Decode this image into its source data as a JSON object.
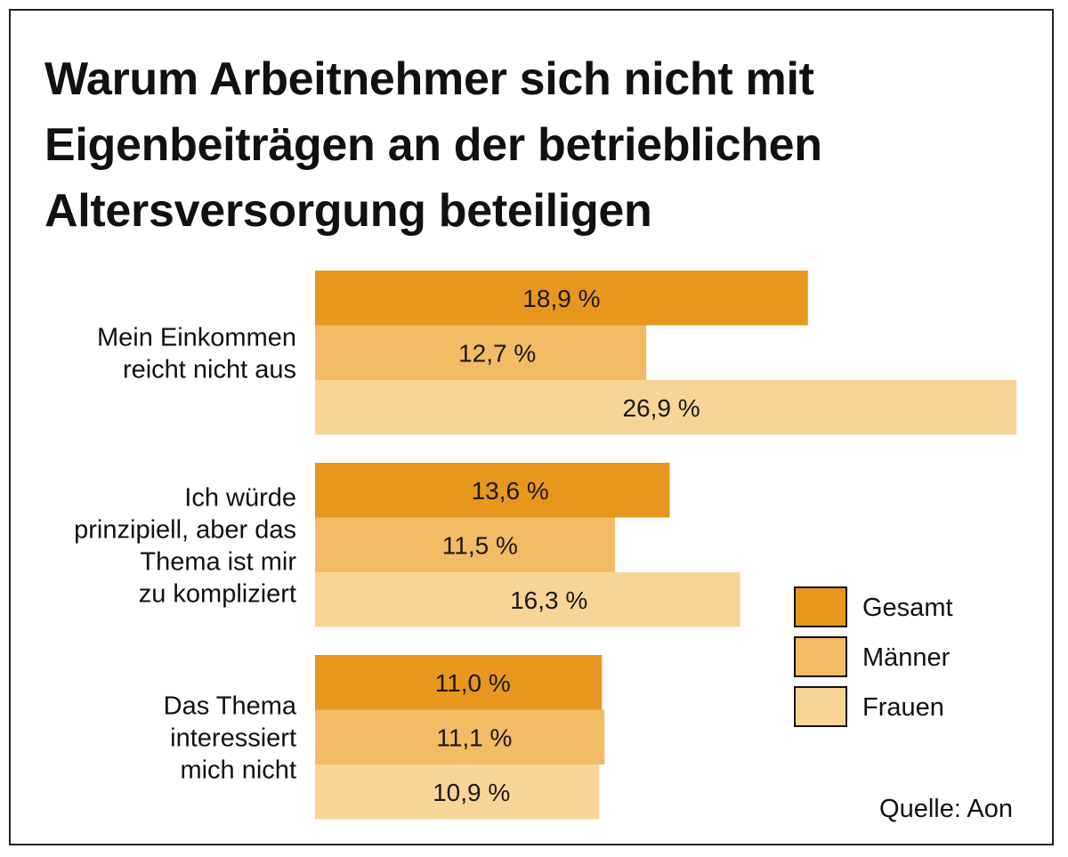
{
  "chart_data": {
    "type": "bar",
    "orientation": "horizontal",
    "title": "Warum Arbeitnehmer sich nicht mit\nEigenbeiträgen an der betrieblichen\nAltersversorgung beteiligen",
    "categories": [
      [
        "Mein Einkommen",
        "reicht nicht aus"
      ],
      [
        "Ich würde",
        "prinzipiell, aber das",
        "Thema ist mir",
        "zu kompliziert"
      ],
      [
        "Das Thema",
        "interessiert",
        "mich nicht"
      ]
    ],
    "series": [
      {
        "name": "Gesamt",
        "values": [
          18.9,
          13.6,
          11.0
        ],
        "labels": [
          "18,9 %",
          "13,6 %",
          "11,0 %"
        ],
        "color": "#E8971E"
      },
      {
        "name": "Männer",
        "values": [
          12.7,
          11.5,
          11.1
        ],
        "labels": [
          "12,7 %",
          "11,5 %",
          "11,1 %"
        ],
        "color": "#F2BB64"
      },
      {
        "name": "Frauen",
        "values": [
          26.9,
          16.3,
          10.9
        ],
        "labels": [
          "26,9 %",
          "16,3 %",
          "10,9 %"
        ],
        "color": "#F8D597"
      }
    ],
    "legend_position": "right",
    "xlim": [
      0,
      27
    ],
    "grid": false,
    "source": "Quelle: Aon"
  }
}
